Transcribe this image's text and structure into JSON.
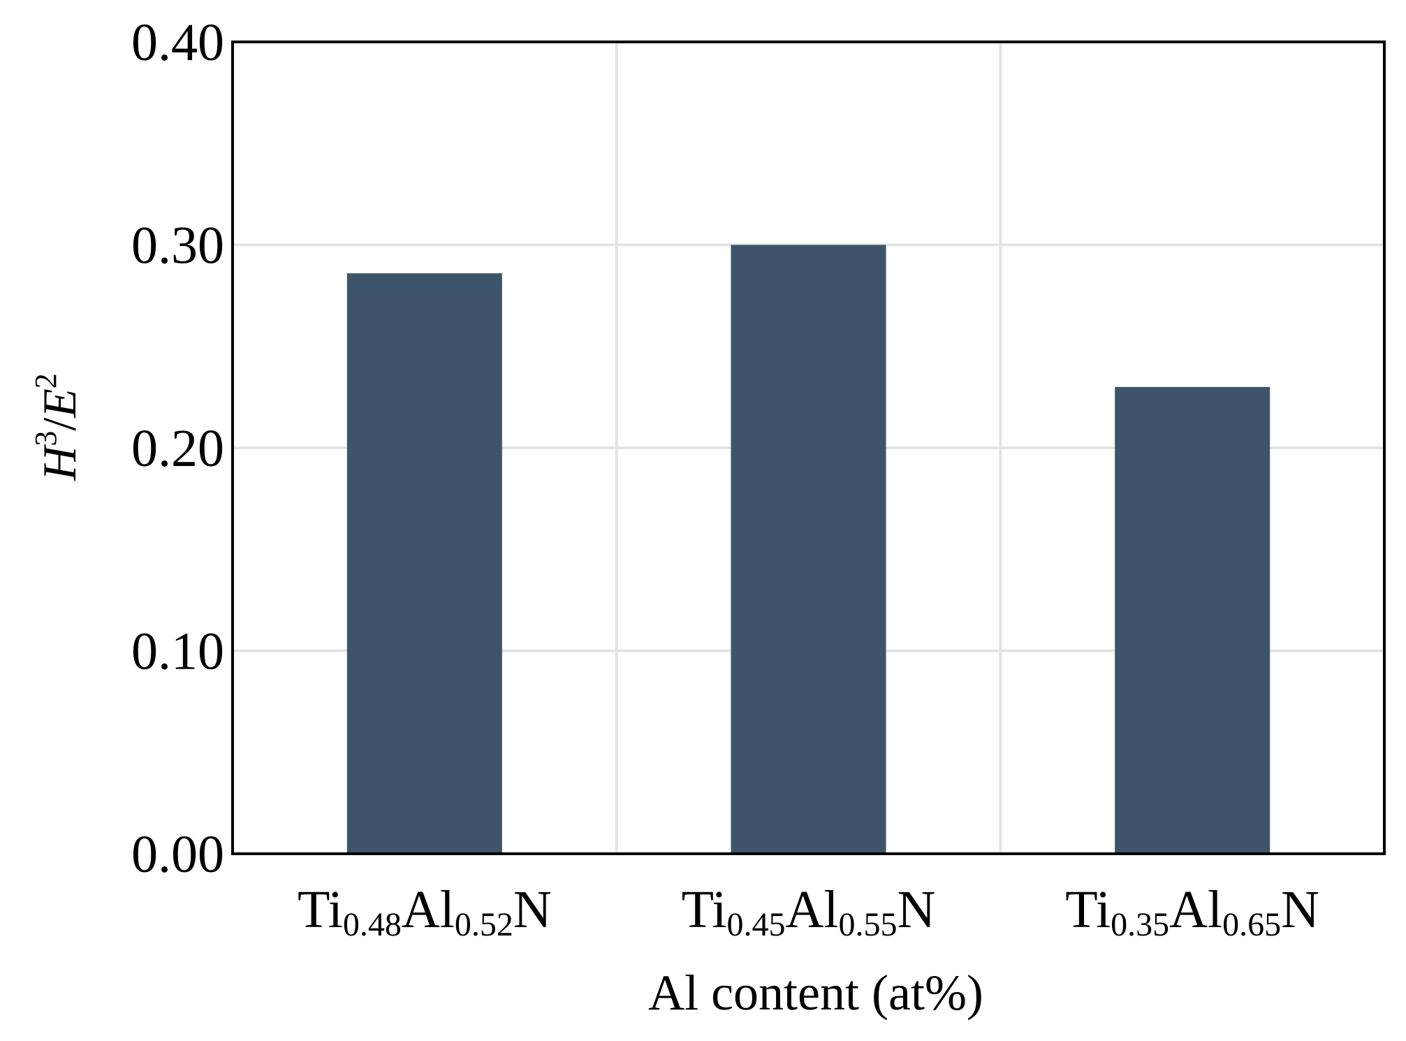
{
  "chart_data": {
    "type": "bar",
    "categories": [
      {
        "base1": "Ti",
        "sub1": "0.48",
        "base2": "Al",
        "sub2": "0.52",
        "base3": "N"
      },
      {
        "base1": "Ti",
        "sub1": "0.45",
        "base2": "Al",
        "sub2": "0.55",
        "base3": "N"
      },
      {
        "base1": "Ti",
        "sub1": "0.35",
        "base2": "Al",
        "sub2": "0.65",
        "base3": "N"
      }
    ],
    "values": [
      0.286,
      0.3,
      0.23
    ],
    "xlabel": "Al content (at%)",
    "ylabel": {
      "var1": "H",
      "exp1": "3",
      "slash": "/",
      "var2": "E",
      "exp2": "2"
    },
    "ylim": [
      0,
      0.4
    ],
    "yticks": [
      "0.00",
      "0.10",
      "0.20",
      "0.30",
      "0.40"
    ],
    "grid": true,
    "colors": {
      "bar": "#3d546b",
      "grid": "#e3e3e3",
      "frame": "#000000"
    }
  }
}
